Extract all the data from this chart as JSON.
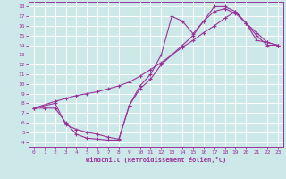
{
  "xlabel": "Windchill (Refroidissement éolien,°C)",
  "bg_color": "#cce8e8",
  "line_color": "#993399",
  "grid_color": "#ffffff",
  "xlim": [
    -0.5,
    23.5
  ],
  "ylim": [
    3.5,
    18.5
  ],
  "xticks": [
    0,
    1,
    2,
    3,
    4,
    5,
    6,
    7,
    8,
    9,
    10,
    11,
    12,
    13,
    14,
    15,
    16,
    17,
    18,
    19,
    20,
    21,
    22,
    23
  ],
  "yticks": [
    4,
    5,
    6,
    7,
    8,
    9,
    10,
    11,
    12,
    13,
    14,
    15,
    16,
    17,
    18
  ],
  "curve1_x": [
    0,
    1,
    2,
    3,
    4,
    5,
    6,
    7,
    8,
    9,
    10,
    11,
    12,
    13,
    14,
    15,
    16,
    17,
    18,
    19,
    20,
    21,
    22,
    23
  ],
  "curve1_y": [
    7.5,
    7.5,
    7.5,
    6.0,
    4.8,
    4.4,
    4.3,
    4.2,
    4.2,
    7.8,
    9.8,
    11.0,
    13.0,
    17.0,
    16.5,
    15.2,
    16.5,
    18.0,
    18.0,
    17.5,
    16.3,
    15.0,
    14.0,
    14.0
  ],
  "curve2_x": [
    0,
    2,
    3,
    4,
    5,
    6,
    7,
    8,
    9,
    10,
    11,
    12,
    13,
    14,
    15,
    16,
    17,
    18,
    19,
    20,
    21,
    22,
    23
  ],
  "curve2_y": [
    7.5,
    8.0,
    5.8,
    5.3,
    5.0,
    4.8,
    4.5,
    4.3,
    7.8,
    9.5,
    10.5,
    12.0,
    13.0,
    14.0,
    15.0,
    16.5,
    17.5,
    17.8,
    17.3,
    16.3,
    15.3,
    14.3,
    14.0
  ],
  "curve3_x": [
    0,
    2,
    3,
    4,
    5,
    6,
    7,
    8,
    9,
    10,
    11,
    12,
    13,
    14,
    15,
    16,
    17,
    18,
    19,
    20,
    21,
    22,
    23
  ],
  "curve3_y": [
    7.5,
    8.2,
    8.5,
    8.8,
    9.0,
    9.2,
    9.5,
    9.8,
    10.2,
    10.8,
    11.5,
    12.2,
    13.0,
    13.8,
    14.5,
    15.3,
    16.0,
    16.8,
    17.5,
    16.3,
    14.5,
    14.3,
    14.0
  ]
}
